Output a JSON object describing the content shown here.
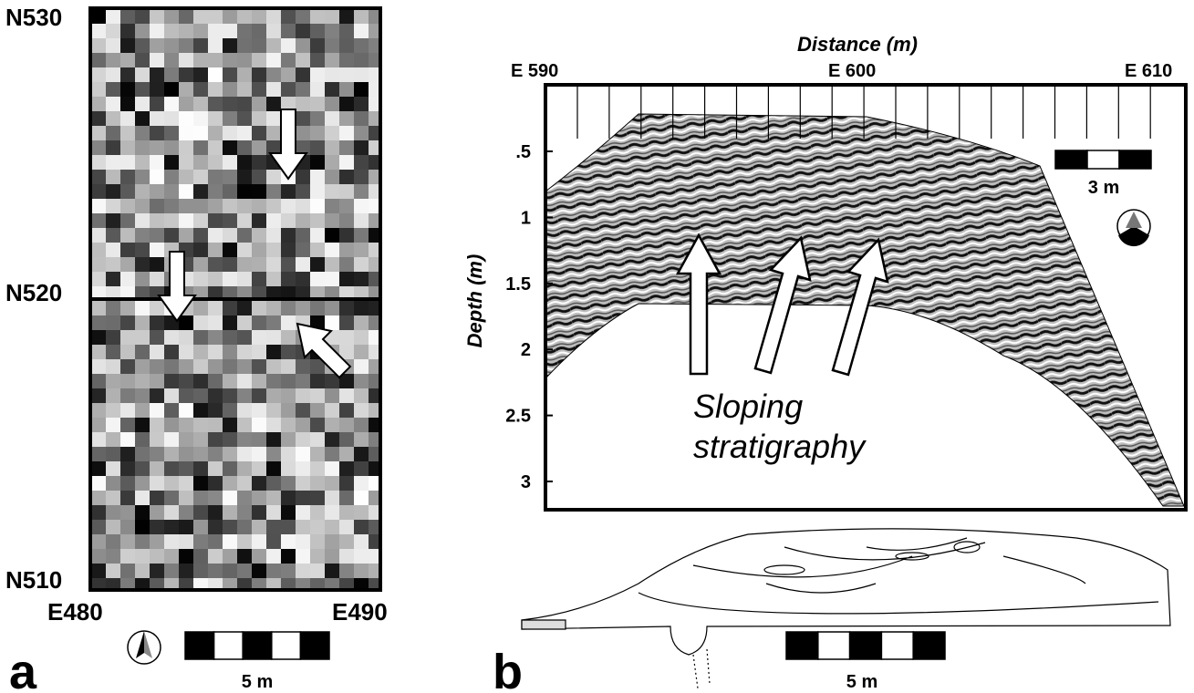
{
  "panel_a": {
    "label": "a",
    "northings": [
      "N530",
      "N520",
      "N510"
    ],
    "eastings": [
      "E480",
      "E490"
    ],
    "scale": "5 m"
  },
  "panel_b": {
    "label": "b",
    "x_title": "Distance (m)",
    "x_labels": [
      "E 590",
      "E 600",
      "E 610"
    ],
    "y_title": "Depth (m)",
    "y_labels": [
      ".5",
      "1",
      "1.5",
      "2",
      "2.5",
      "3"
    ],
    "scale_top": "3 m",
    "annotation": [
      "Sloping",
      "stratigraphy"
    ],
    "scale_bottom": "5 m"
  }
}
